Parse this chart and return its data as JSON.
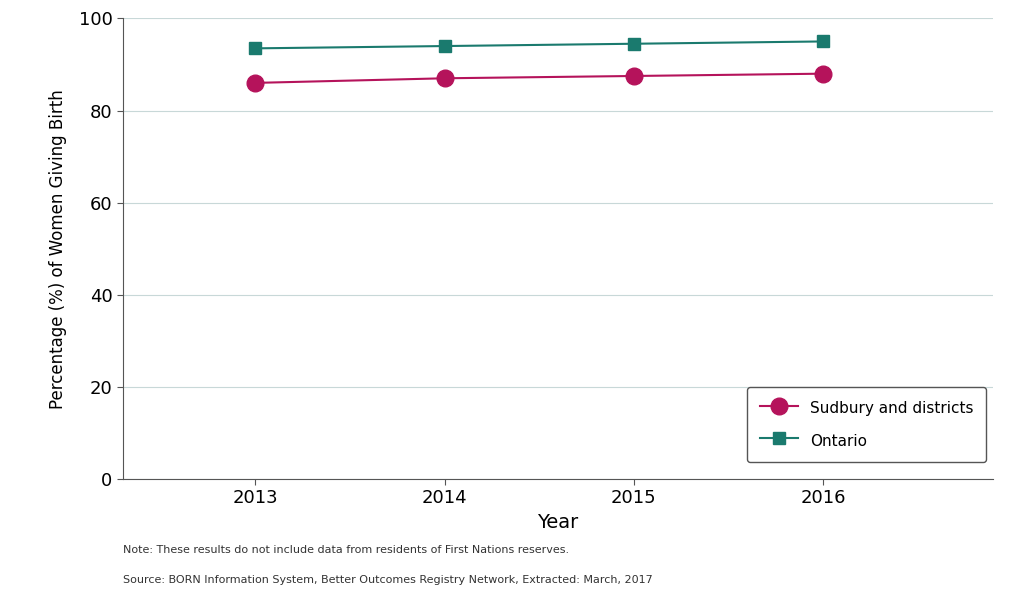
{
  "years": [
    2013,
    2014,
    2015,
    2016
  ],
  "sudbury_values": [
    86.0,
    87.0,
    87.5,
    88.0
  ],
  "ontario_values": [
    93.5,
    94.0,
    94.5,
    95.0
  ],
  "sudbury_color": "#b5135b",
  "ontario_color": "#1a7a6e",
  "sudbury_label": "Sudbury and districts",
  "ontario_label": "Ontario",
  "ylabel": "Percentage (%) of Women Giving Birth",
  "xlabel": "Year",
  "ylim": [
    0,
    100
  ],
  "yticks": [
    0,
    20,
    40,
    60,
    80,
    100
  ],
  "xlim": [
    2012.3,
    2016.9
  ],
  "note_line1": "Note: These results do not include data from residents of First Nations reserves.",
  "note_line2": "Source: BORN Information System, Better Outcomes Registry Network, Extracted: March, 2017",
  "background_color": "#ffffff",
  "grid_color": "#c8d8d8",
  "line_width": 1.5,
  "marker_size_circle": 12,
  "marker_size_square": 9,
  "tick_fontsize": 13,
  "label_fontsize": 14,
  "ylabel_fontsize": 12,
  "legend_fontsize": 11,
  "note_fontsize": 8
}
